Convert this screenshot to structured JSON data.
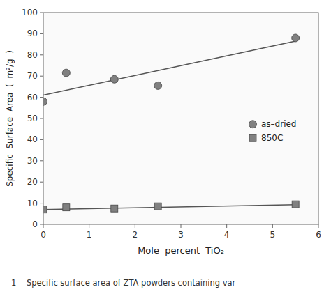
{
  "chart_data": {
    "type": "scatter",
    "x_label": "Mole  percent  TiO₂",
    "y_label": "Specific  Surface  Area  (  m²/g  )",
    "caption": "1    Specific surface area of ZTA powders containing var",
    "series": [
      {
        "name": "as–dried",
        "type": "scatter",
        "marker": "circle",
        "color": "#808080",
        "x": [
          0.0,
          0.5,
          1.55,
          2.5,
          5.5
        ],
        "values": [
          58.0,
          71.5,
          68.5,
          65.5,
          88.0
        ]
      },
      {
        "name": "850C",
        "type": "scatter",
        "marker": "square",
        "color": "#808080",
        "x": [
          0.0,
          0.5,
          1.55,
          2.5,
          5.5
        ],
        "values": [
          7.0,
          8.0,
          7.5,
          8.5,
          9.5
        ]
      },
      {
        "type": "line",
        "color": "#555555",
        "x": [
          0.0,
          5.5
        ],
        "values": [
          61.0,
          86.5
        ]
      },
      {
        "type": "line",
        "color": "#555555",
        "x": [
          0.0,
          5.5
        ],
        "values": [
          7.0,
          9.3
        ]
      }
    ],
    "xlim": [
      0,
      6
    ],
    "ylim": [
      0,
      100
    ],
    "xticks": [
      0,
      1,
      2,
      3,
      4,
      5,
      6
    ],
    "yticks": [
      0,
      10,
      20,
      30,
      40,
      50,
      60,
      70,
      80,
      90,
      100
    ],
    "grid": false,
    "legend": "right"
  }
}
